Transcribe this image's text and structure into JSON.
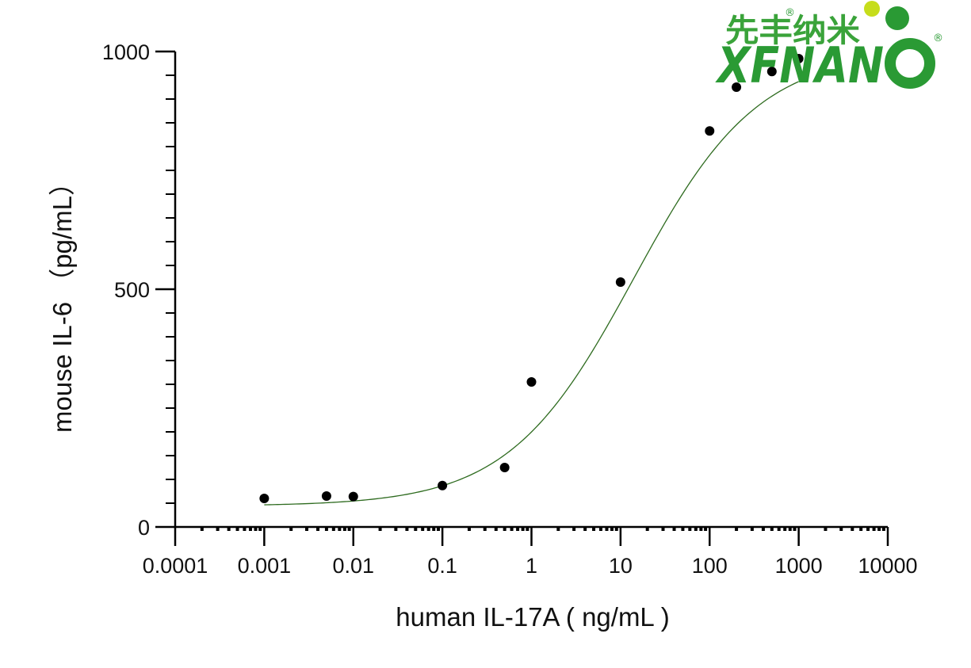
{
  "chart_data": {
    "type": "scatter",
    "title": "",
    "xlabel": "human IL-17A ( ng/mL )",
    "ylabel": "mouse IL-6 （pg/mL）",
    "x_scale": "log",
    "xlim": [
      0.0001,
      10000
    ],
    "ylim": [
      0,
      1000
    ],
    "x_ticks": [
      "0.0001",
      "0.001",
      "0.01",
      "0.1",
      "1",
      "10",
      "100",
      "1000",
      "10000"
    ],
    "y_ticks": [
      "0",
      "500",
      "1000"
    ],
    "grid": false,
    "legend": "none",
    "points": [
      {
        "x": 0.001,
        "y": 60
      },
      {
        "x": 0.005,
        "y": 65
      },
      {
        "x": 0.01,
        "y": 64
      },
      {
        "x": 0.1,
        "y": 87
      },
      {
        "x": 0.5,
        "y": 125
      },
      {
        "x": 1,
        "y": 305
      },
      {
        "x": 10,
        "y": 515
      },
      {
        "x": 100,
        "y": 833
      },
      {
        "x": 200,
        "y": 925
      },
      {
        "x": 500,
        "y": 958
      },
      {
        "x": 1000,
        "y": 985
      }
    ],
    "fit": {
      "type": "four-parameter-logistic",
      "bottom": 44,
      "top": 1000,
      "ec50": 14,
      "hill": 0.62,
      "x_range": [
        0.001,
        1000
      ],
      "color": "#2e6b1f"
    },
    "point_color": "#000000"
  },
  "logo": {
    "cn_text": "先丰纳米",
    "en_text": "XFNAN",
    "en_final": "O",
    "reg_mark": "®",
    "green": "#2a9a34",
    "lime": "#c6dd1b"
  }
}
